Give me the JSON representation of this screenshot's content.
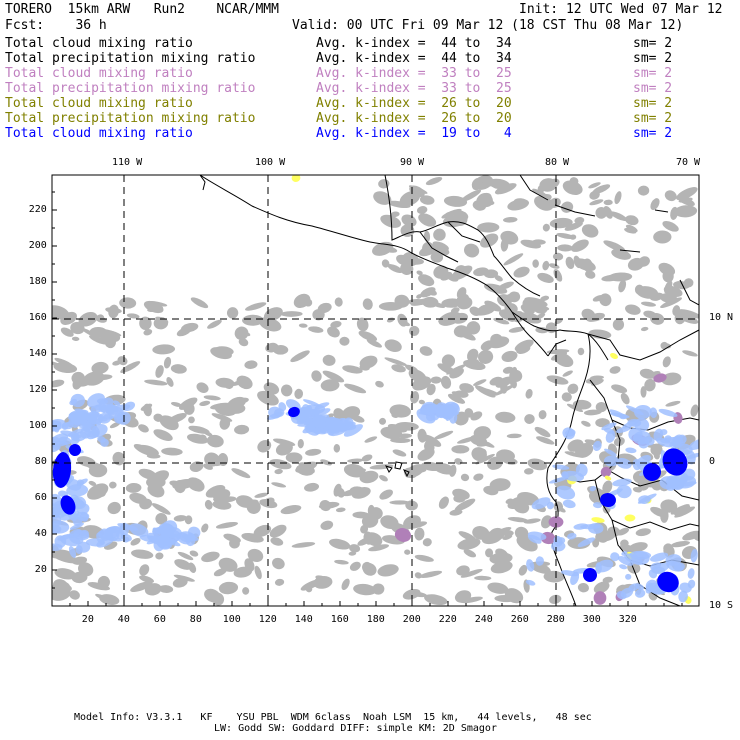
{
  "header": {
    "left1": "TORERO  15km ARW   Run2    NCAR/MMM",
    "right1": "Init: 12 UTC Wed 07 Mar 12",
    "left2": "Fcst:    36 h",
    "right2": "Valid: 00 UTC Fri 09 Mar 12 (18 CST Thu 08 Mar 12)"
  },
  "legend": [
    {
      "field": "Total cloud mixing ratio",
      "index": "Avg. k-index =  44 to  34",
      "sm": "sm= 2",
      "color": "#000000"
    },
    {
      "field": "Total precipitation mixing ratio",
      "index": "Avg. k-index =  44 to  34",
      "sm": "sm= 2",
      "color": "#000000"
    },
    {
      "field": "Total cloud mixing ratio",
      "index": "Avg. k-index =  33 to  25",
      "sm": "sm= 2",
      "color": "#c080c0"
    },
    {
      "field": "Total precipitation mixing ratio",
      "index": "Avg. k-index =  33 to  25",
      "sm": "sm= 2",
      "color": "#c080c0"
    },
    {
      "field": "Total cloud mixing ratio",
      "index": "Avg. k-index =  26 to  20",
      "sm": "sm= 2",
      "color": "#808000"
    },
    {
      "field": "Total precipitation mixing ratio",
      "index": "Avg. k-index =  26 to  20",
      "sm": "sm= 2",
      "color": "#808000"
    },
    {
      "field": "Total cloud mixing ratio",
      "index": "Avg. k-index =  19 to   4",
      "sm": "sm= 2",
      "color": "#0000ff"
    }
  ],
  "map": {
    "lon_labels": [
      "110 W",
      "100 W",
      "90 W",
      "80 W",
      "70 W"
    ],
    "lat_labels": [
      "10 N",
      "0",
      "10 S"
    ],
    "x_ticks": [
      "20",
      "40",
      "60",
      "80",
      "100",
      "120",
      "140",
      "160",
      "180",
      "200",
      "220",
      "240",
      "260",
      "280",
      "300",
      "320"
    ],
    "y_ticks": [
      "20",
      "40",
      "60",
      "80",
      "100",
      "120",
      "140",
      "160",
      "180",
      "200",
      "220"
    ],
    "colors": {
      "gray": "#b4b4b4",
      "purple": "#b080b8",
      "yellow": "#ffff60",
      "blue": "#0000ff",
      "lightblue": "#a0c0ff"
    }
  },
  "footer": {
    "line1": "Model Info: V3.3.1   KF    YSU PBL  WDM 6class  Noah LSM  15 km,   44 levels,   48 sec",
    "line2": "LW: Godd SW: Goddard DIFF: simple KM: 2D Smagor"
  }
}
